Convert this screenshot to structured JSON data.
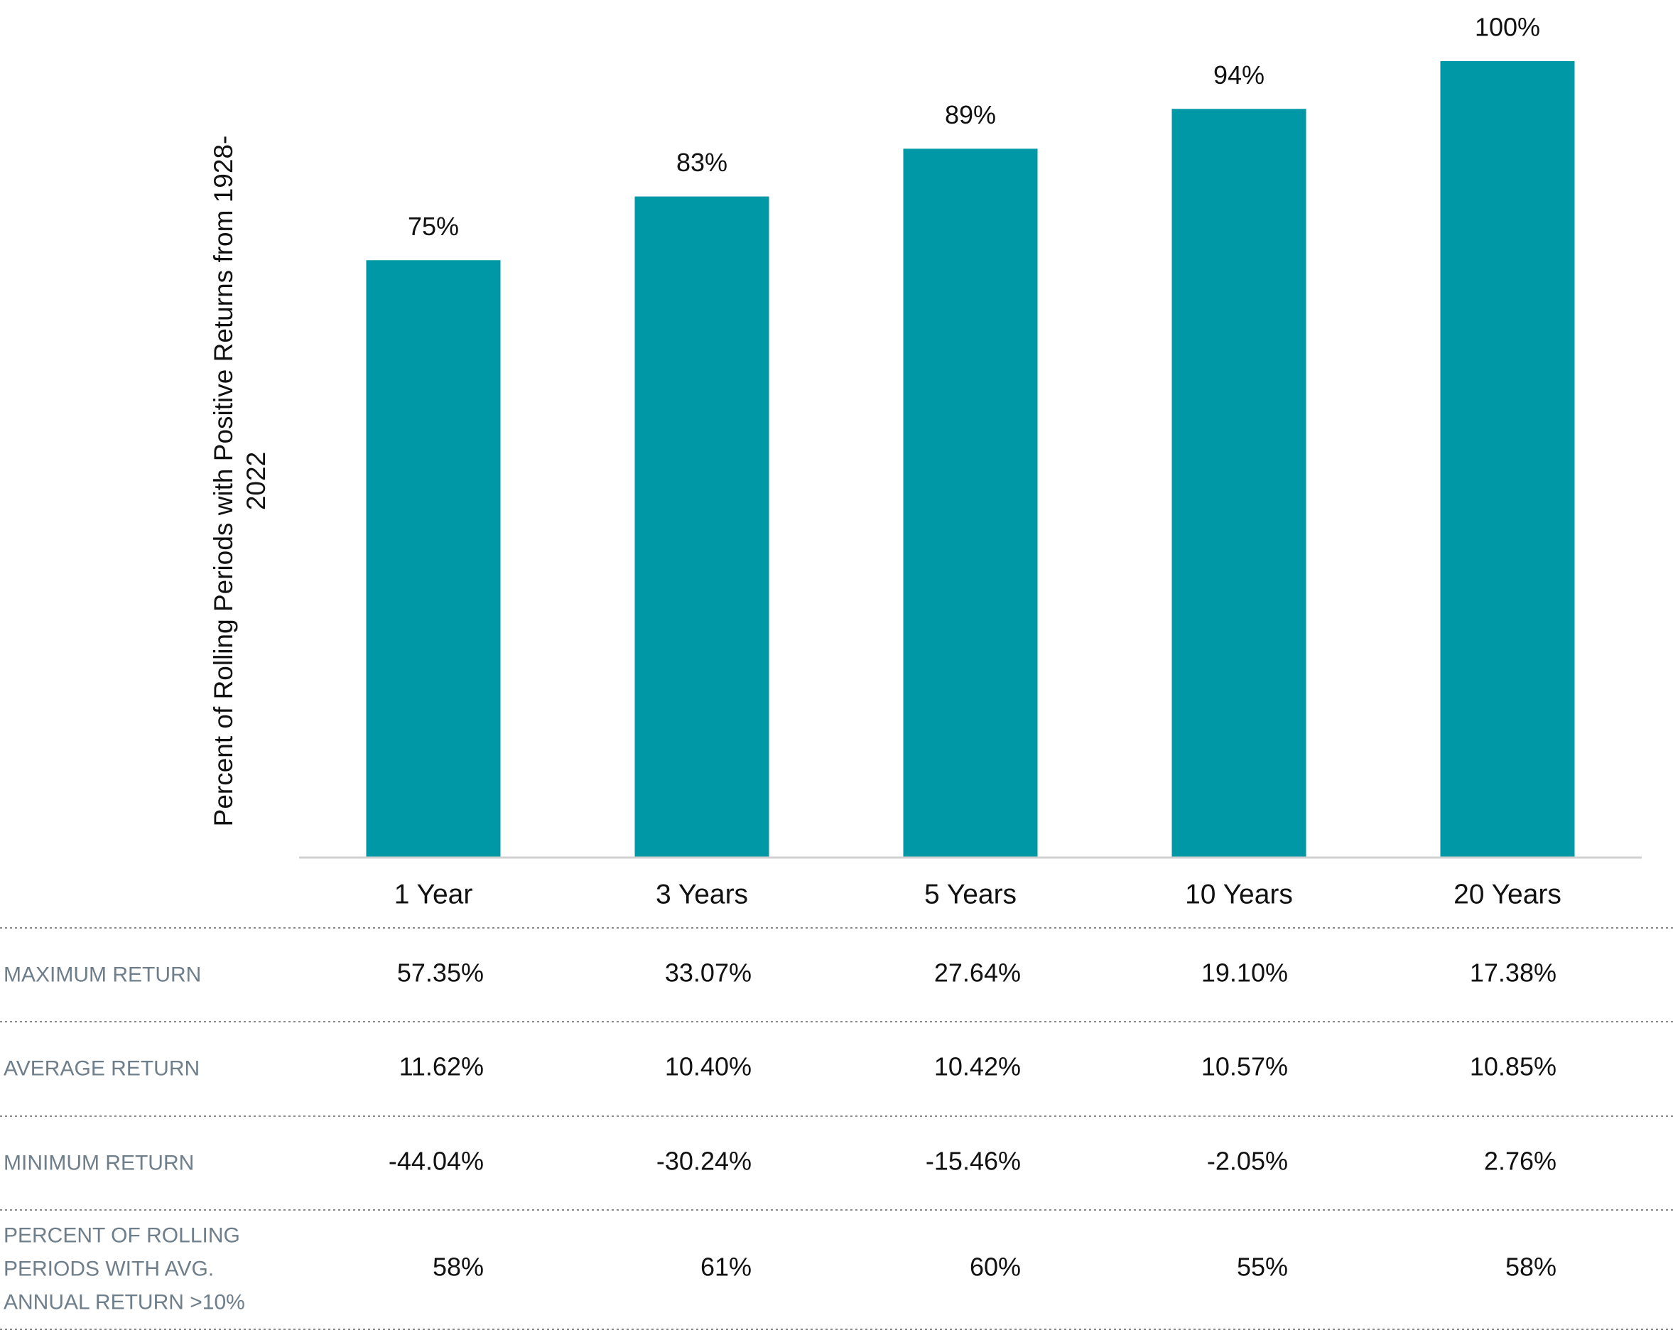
{
  "chart_data": {
    "type": "bar",
    "y_label": "Percent of Rolling Periods with Positive Returns from 1928-2022",
    "categories": [
      "1 Year",
      "3 Years",
      "5 Years",
      "10 Years",
      "20 Years"
    ],
    "values": [
      75,
      83,
      89,
      94,
      100
    ],
    "value_labels": [
      "75%",
      "83%",
      "89%",
      "94%",
      "100%"
    ],
    "color": "#0098a6",
    "ylim": [
      0,
      100
    ],
    "grid": false
  },
  "table": {
    "rows": [
      {
        "label": "MAXIMUM RETURN",
        "values": [
          "57.35%",
          "33.07%",
          "27.64%",
          "19.10%",
          "17.38%"
        ]
      },
      {
        "label": "AVERAGE RETURN",
        "values": [
          "11.62%",
          "10.40%",
          "10.42%",
          "10.57%",
          "10.85%"
        ]
      },
      {
        "label": "MINIMUM RETURN",
        "values": [
          "-44.04%",
          "-30.24%",
          "-15.46%",
          "-2.05%",
          "2.76%"
        ]
      },
      {
        "label": "PERCENT OF ROLLING PERIODS WITH AVG. ANNUAL RETURN >10%",
        "values": [
          "58%",
          "61%",
          "60%",
          "55%",
          "58%"
        ]
      }
    ]
  }
}
